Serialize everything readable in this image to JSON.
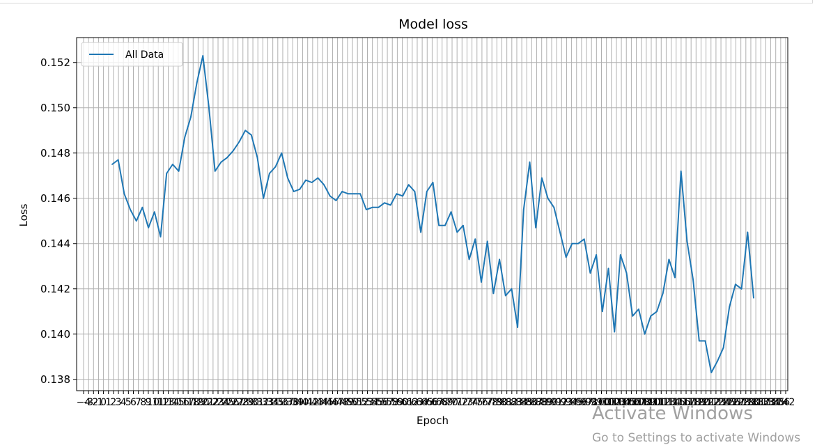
{
  "chart_data": {
    "type": "line",
    "title": "Model loss",
    "xlabel": "Epoch",
    "ylabel": "Loss",
    "ylim": [
      0.1375,
      0.1531
    ],
    "yticks": [
      "0.138",
      "0.140",
      "0.142",
      "0.144",
      "0.146",
      "0.148",
      "0.150",
      "0.152"
    ],
    "grid": true,
    "legend_position": "top-left",
    "x_tick_count": 142,
    "x_tick_first_label": "−4",
    "x_tick_last_label": "142",
    "series": [
      {
        "name": "All Data",
        "color": "#1f77b4",
        "values": [
          0.1475,
          0.1477,
          0.1462,
          0.1455,
          0.145,
          0.1456,
          0.1447,
          0.1454,
          0.1443,
          0.1471,
          0.1475,
          0.1472,
          0.1487,
          0.1496,
          0.1511,
          0.1523,
          0.15,
          0.1472,
          0.1476,
          0.1478,
          0.1481,
          0.1485,
          0.149,
          0.1488,
          0.1478,
          0.146,
          0.1471,
          0.1474,
          0.148,
          0.1469,
          0.1463,
          0.1464,
          0.1468,
          0.1467,
          0.1469,
          0.1466,
          0.1461,
          0.1459,
          0.1463,
          0.1462,
          0.1462,
          0.1462,
          0.1455,
          0.1456,
          0.1456,
          0.1458,
          0.1457,
          0.1462,
          0.1461,
          0.1466,
          0.1463,
          0.1445,
          0.1463,
          0.1467,
          0.1448,
          0.1448,
          0.1454,
          0.1445,
          0.1448,
          0.1433,
          0.1442,
          0.1423,
          0.1441,
          0.1418,
          0.1433,
          0.1417,
          0.142,
          0.1403,
          0.1455,
          0.1476,
          0.1447,
          0.1469,
          0.146,
          0.1456,
          0.1445,
          0.1434,
          0.144,
          0.144,
          0.1442,
          0.1427,
          0.1435,
          0.141,
          0.1429,
          0.1401,
          0.1435,
          0.1427,
          0.1408,
          0.1411,
          0.14,
          0.1408,
          0.141,
          0.1418,
          0.1433,
          0.1425,
          0.1472,
          0.1441,
          0.1424,
          0.1397,
          0.1397,
          0.1383,
          0.1388,
          0.1394,
          0.1412,
          0.1422,
          0.142,
          0.1445,
          0.1416
        ]
      }
    ]
  },
  "watermark": {
    "title": "Activate Windows",
    "subtitle": "Go to Settings to activate Windows"
  }
}
